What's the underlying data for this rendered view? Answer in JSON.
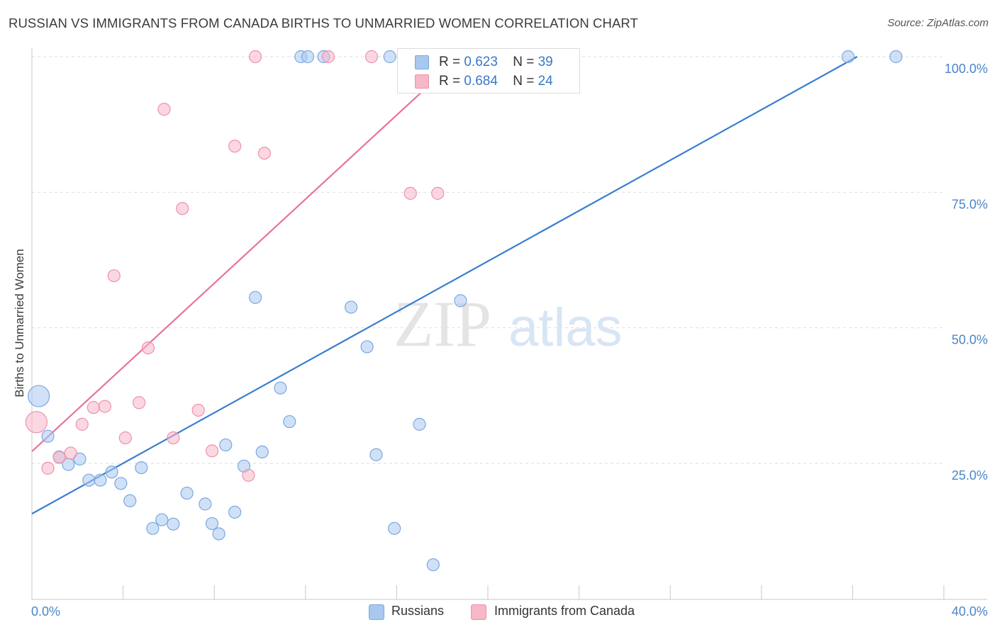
{
  "title": "RUSSIAN VS IMMIGRANTS FROM CANADA BIRTHS TO UNMARRIED WOMEN CORRELATION CHART",
  "source": "Source: ZipAtlas.com",
  "watermark": {
    "zip": "ZIP",
    "atlas": "atlas"
  },
  "legend": {
    "rows": [
      {
        "r_label": "R = ",
        "r_value": "0.623",
        "n_label": "N = ",
        "n_value": "39",
        "color": "#a9c8f0"
      },
      {
        "r_label": "R = ",
        "r_value": "0.684",
        "n_label": "N = ",
        "n_value": "24",
        "color": "#f7b7c8"
      }
    ]
  },
  "bottom_legend": [
    "Russians",
    "Immigrants from Canada"
  ],
  "colors": {
    "blue": "#3b7dd0",
    "pink": "#e8739a",
    "blue_fill": "#a9c8f0",
    "pink_fill": "#f7b7c8",
    "tick": "#4a86c8"
  },
  "chart_data": {
    "type": "scatter",
    "title": "RUSSIAN VS IMMIGRANTS FROM CANADA BIRTHS TO UNMARRIED WOMEN CORRELATION CHART",
    "xlabel": "",
    "ylabel": "Births to Unmarried Women",
    "xlim": [
      0,
      40
    ],
    "ylim": [
      0,
      100
    ],
    "x_tick_labels": [
      "0.0%",
      "40.0%"
    ],
    "y_tick_labels": [
      "25.0%",
      "50.0%",
      "75.0%",
      "100.0%"
    ],
    "y_ticks": [
      25,
      50,
      75,
      100
    ],
    "legend_position": "top-center",
    "grid": true,
    "series": [
      {
        "name": "Russians",
        "color": "#3b7dd0",
        "trend": {
          "x": [
            0,
            36.2
          ],
          "y": [
            15.7,
            100
          ]
        },
        "points": [
          {
            "x": 0.3,
            "y": 37.4,
            "big": true
          },
          {
            "x": 0.7,
            "y": 30.0
          },
          {
            "x": 1.2,
            "y": 26.2
          },
          {
            "x": 1.6,
            "y": 24.8
          },
          {
            "x": 2.1,
            "y": 25.8
          },
          {
            "x": 2.5,
            "y": 21.9
          },
          {
            "x": 3.0,
            "y": 21.9
          },
          {
            "x": 3.5,
            "y": 23.4
          },
          {
            "x": 3.9,
            "y": 21.3
          },
          {
            "x": 4.3,
            "y": 18.1
          },
          {
            "x": 4.8,
            "y": 24.2
          },
          {
            "x": 5.3,
            "y": 13.0
          },
          {
            "x": 5.7,
            "y": 14.6
          },
          {
            "x": 6.2,
            "y": 13.8
          },
          {
            "x": 6.8,
            "y": 19.5
          },
          {
            "x": 7.9,
            "y": 13.9
          },
          {
            "x": 7.6,
            "y": 17.5
          },
          {
            "x": 8.2,
            "y": 12.0
          },
          {
            "x": 8.5,
            "y": 28.4
          },
          {
            "x": 8.9,
            "y": 16.0
          },
          {
            "x": 9.3,
            "y": 24.5
          },
          {
            "x": 9.8,
            "y": 55.6
          },
          {
            "x": 10.1,
            "y": 27.1
          },
          {
            "x": 10.9,
            "y": 38.9
          },
          {
            "x": 11.3,
            "y": 32.7
          },
          {
            "x": 11.8,
            "y": 100
          },
          {
            "x": 12.1,
            "y": 100
          },
          {
            "x": 12.8,
            "y": 100
          },
          {
            "x": 14.0,
            "y": 53.8
          },
          {
            "x": 14.7,
            "y": 46.5
          },
          {
            "x": 15.1,
            "y": 26.6
          },
          {
            "x": 15.7,
            "y": 100
          },
          {
            "x": 15.9,
            "y": 13.0
          },
          {
            "x": 17.0,
            "y": 32.2
          },
          {
            "x": 17.6,
            "y": 6.3
          },
          {
            "x": 18.8,
            "y": 55.0
          },
          {
            "x": 19.9,
            "y": 100
          },
          {
            "x": 35.8,
            "y": 100
          },
          {
            "x": 37.9,
            "y": 100
          }
        ]
      },
      {
        "name": "Immigrants from Canada",
        "color": "#e8739a",
        "trend": {
          "x": [
            0,
            17.8
          ],
          "y": [
            27.2,
            96.2
          ]
        },
        "points": [
          {
            "x": 0.2,
            "y": 32.6,
            "big": true
          },
          {
            "x": 0.7,
            "y": 24.1
          },
          {
            "x": 1.2,
            "y": 26.1
          },
          {
            "x": 1.7,
            "y": 26.9
          },
          {
            "x": 2.2,
            "y": 32.2
          },
          {
            "x": 2.7,
            "y": 35.3
          },
          {
            "x": 3.2,
            "y": 35.5
          },
          {
            "x": 3.6,
            "y": 59.6
          },
          {
            "x": 4.1,
            "y": 29.7
          },
          {
            "x": 4.7,
            "y": 36.2
          },
          {
            "x": 5.1,
            "y": 46.3
          },
          {
            "x": 5.8,
            "y": 90.3
          },
          {
            "x": 6.2,
            "y": 29.7
          },
          {
            "x": 6.6,
            "y": 72.0
          },
          {
            "x": 7.3,
            "y": 34.8
          },
          {
            "x": 7.9,
            "y": 27.3
          },
          {
            "x": 8.9,
            "y": 83.5
          },
          {
            "x": 9.5,
            "y": 22.8
          },
          {
            "x": 9.8,
            "y": 100
          },
          {
            "x": 10.2,
            "y": 82.2
          },
          {
            "x": 13.0,
            "y": 100
          },
          {
            "x": 14.9,
            "y": 100
          },
          {
            "x": 16.6,
            "y": 74.8
          },
          {
            "x": 17.8,
            "y": 74.8
          }
        ]
      }
    ]
  }
}
